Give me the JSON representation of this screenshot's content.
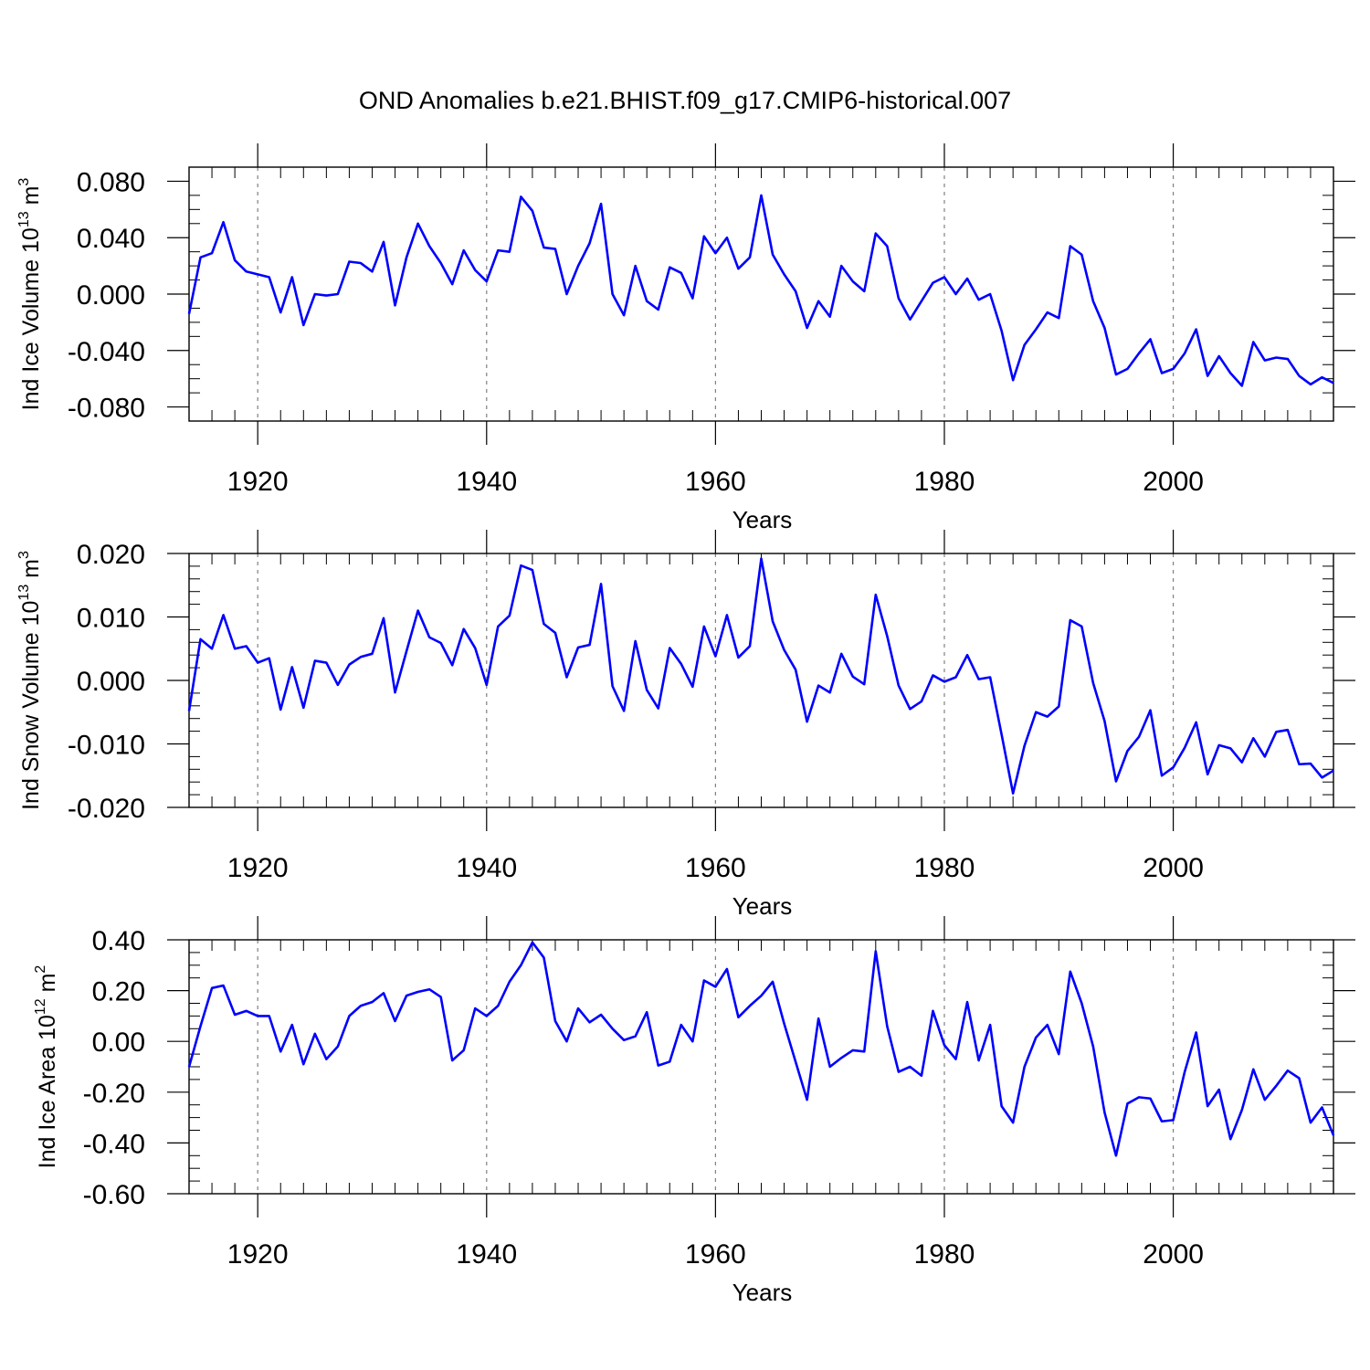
{
  "figure_title": "OND Anomalies b.e21.BHIST.f09_g17.CMIP6-historical.007",
  "colors": {
    "line": "#0000ff",
    "grid": "#808080",
    "axis": "#000000"
  },
  "chart_data": [
    {
      "type": "line",
      "name": "ice-volume",
      "title": "",
      "xlabel": "Years",
      "ylabel_main": "Ind Ice Volume 10",
      "ylabel_exp": "13",
      "ylabel_unit": " m",
      "ylabel_pow": "3",
      "xlim": [
        1914,
        2014
      ],
      "ylim": [
        -0.09,
        0.09
      ],
      "xticks": [
        1920,
        1940,
        1960,
        1980,
        2000
      ],
      "xtick_labels": [
        "1920",
        "1940",
        "1960",
        "1980",
        "2000"
      ],
      "yticks": [
        -0.08,
        -0.04,
        0.0,
        0.04,
        0.08
      ],
      "ytick_labels": [
        "-0.080",
        "-0.040",
        "0.000",
        "0.040",
        "0.080"
      ],
      "yminor": 0.01,
      "grid": "vertical dashed at major x ticks",
      "series": [
        {
          "name": "Ind Ice Volume",
          "x_start": 1914,
          "values": [
            -0.014,
            0.026,
            0.029,
            0.051,
            0.024,
            0.016,
            0.014,
            0.012,
            -0.013,
            0.012,
            -0.022,
            0.0,
            -0.001,
            0.0,
            0.023,
            0.022,
            0.016,
            0.037,
            -0.008,
            0.026,
            0.05,
            0.034,
            0.022,
            0.007,
            0.031,
            0.017,
            0.009,
            0.031,
            0.03,
            0.069,
            0.059,
            0.033,
            0.032,
            0.0,
            0.02,
            0.036,
            0.064,
            0.0,
            -0.015,
            0.02,
            -0.005,
            -0.011,
            0.019,
            0.015,
            -0.003,
            0.041,
            0.029,
            0.04,
            0.018,
            0.026,
            0.07,
            0.028,
            0.014,
            0.002,
            -0.024,
            -0.005,
            -0.016,
            0.02,
            0.009,
            0.002,
            0.043,
            0.034,
            -0.003,
            -0.018,
            -0.005,
            0.008,
            0.012,
            0.0,
            0.011,
            -0.004,
            0.0,
            -0.026,
            -0.061,
            -0.036,
            -0.025,
            -0.013,
            -0.017,
            0.034,
            0.028,
            -0.005,
            -0.024,
            -0.057,
            -0.053,
            -0.042,
            -0.032,
            -0.056,
            -0.053,
            -0.042,
            -0.025,
            -0.058,
            -0.044,
            -0.056,
            -0.065,
            -0.034,
            -0.047,
            -0.045,
            -0.046,
            -0.058,
            -0.064,
            -0.059,
            -0.063
          ]
        }
      ]
    },
    {
      "type": "line",
      "name": "snow-volume",
      "title": "",
      "xlabel": "Years",
      "ylabel_main": "Ind Snow Volume 10",
      "ylabel_exp": "13",
      "ylabel_unit": " m",
      "ylabel_pow": "3",
      "xlim": [
        1914,
        2014
      ],
      "ylim": [
        -0.02,
        0.02
      ],
      "xticks": [
        1920,
        1940,
        1960,
        1980,
        2000
      ],
      "xtick_labels": [
        "1920",
        "1940",
        "1960",
        "1980",
        "2000"
      ],
      "yticks": [
        -0.02,
        -0.01,
        0.0,
        0.01,
        0.02
      ],
      "ytick_labels": [
        "-0.020",
        "-0.010",
        "0.000",
        "0.010",
        "0.020"
      ],
      "yminor": 0.002,
      "grid": "vertical dashed at major x ticks",
      "series": [
        {
          "name": "Ind Snow Volume",
          "x_start": 1914,
          "values": [
            -0.0048,
            0.0065,
            0.005,
            0.0103,
            0.005,
            0.0054,
            0.0028,
            0.0035,
            -0.0046,
            0.0021,
            -0.0043,
            0.0031,
            0.0028,
            -0.0007,
            0.0025,
            0.0037,
            0.0042,
            0.0098,
            -0.0019,
            0.0046,
            0.011,
            0.0068,
            0.0059,
            0.0024,
            0.0081,
            0.0051,
            -0.0007,
            0.0085,
            0.0102,
            0.0181,
            0.0174,
            0.0089,
            0.0075,
            0.0005,
            0.0052,
            0.0056,
            0.0152,
            -0.0009,
            -0.0048,
            0.0062,
            -0.0015,
            -0.0044,
            0.0051,
            0.0026,
            -0.001,
            0.0085,
            0.0038,
            0.0103,
            0.0036,
            0.0054,
            0.0192,
            0.0093,
            0.0048,
            0.0017,
            -0.0065,
            -0.0008,
            -0.0019,
            0.0042,
            0.0006,
            -0.0006,
            0.0135,
            0.007,
            -0.0008,
            -0.0045,
            -0.0033,
            0.0008,
            -0.0002,
            0.0005,
            0.004,
            0.0002,
            0.0005,
            -0.0085,
            -0.0178,
            -0.0103,
            -0.005,
            -0.0057,
            -0.0041,
            0.0095,
            0.0085,
            -0.0004,
            -0.0064,
            -0.0159,
            -0.0111,
            -0.0089,
            -0.0047,
            -0.015,
            -0.0137,
            -0.0106,
            -0.0066,
            -0.0148,
            -0.0102,
            -0.0107,
            -0.0129,
            -0.0091,
            -0.012,
            -0.0081,
            -0.0078,
            -0.0132,
            -0.0131,
            -0.0153,
            -0.0142
          ]
        }
      ]
    },
    {
      "type": "line",
      "name": "ice-area",
      "title": "",
      "xlabel": "Years",
      "ylabel_main": "Ind Ice Area 10",
      "ylabel_exp": "12",
      "ylabel_unit": " m",
      "ylabel_pow": "2",
      "xlim": [
        1914,
        2014
      ],
      "ylim": [
        -0.6,
        0.4
      ],
      "xticks": [
        1920,
        1940,
        1960,
        1980,
        2000
      ],
      "xtick_labels": [
        "1920",
        "1940",
        "1960",
        "1980",
        "2000"
      ],
      "yticks": [
        -0.6,
        -0.4,
        -0.2,
        0.0,
        0.2,
        0.4
      ],
      "ytick_labels": [
        "-0.60",
        "-0.40",
        "-0.20",
        "0.00",
        "0.20",
        "0.40"
      ],
      "yminor": 0.05,
      "grid": "vertical dashed at major x ticks",
      "series": [
        {
          "name": "Ind Ice Area",
          "x_start": 1914,
          "values": [
            -0.1,
            0.06,
            0.21,
            0.22,
            0.105,
            0.12,
            0.1,
            0.1,
            -0.04,
            0.065,
            -0.09,
            0.03,
            -0.07,
            -0.02,
            0.1,
            0.14,
            0.155,
            0.19,
            0.08,
            0.18,
            0.195,
            0.205,
            0.175,
            -0.075,
            -0.035,
            0.13,
            0.1,
            0.14,
            0.235,
            0.3,
            0.39,
            0.33,
            0.08,
            0.0,
            0.13,
            0.075,
            0.105,
            0.05,
            0.005,
            0.02,
            0.115,
            -0.095,
            -0.08,
            0.065,
            0.0,
            0.24,
            0.215,
            0.285,
            0.095,
            0.14,
            0.18,
            0.235,
            0.07,
            -0.08,
            -0.23,
            0.09,
            -0.1,
            -0.065,
            -0.035,
            -0.04,
            0.355,
            0.06,
            -0.12,
            -0.1,
            -0.135,
            0.12,
            -0.015,
            -0.07,
            0.155,
            -0.075,
            0.065,
            -0.255,
            -0.32,
            -0.1,
            0.015,
            0.065,
            -0.05,
            0.275,
            0.15,
            -0.02,
            -0.28,
            -0.45,
            -0.245,
            -0.22,
            -0.225,
            -0.315,
            -0.31,
            -0.12,
            0.035,
            -0.255,
            -0.19,
            -0.385,
            -0.27,
            -0.11,
            -0.23,
            -0.175,
            -0.115,
            -0.145,
            -0.32,
            -0.26,
            -0.37
          ]
        }
      ]
    }
  ]
}
